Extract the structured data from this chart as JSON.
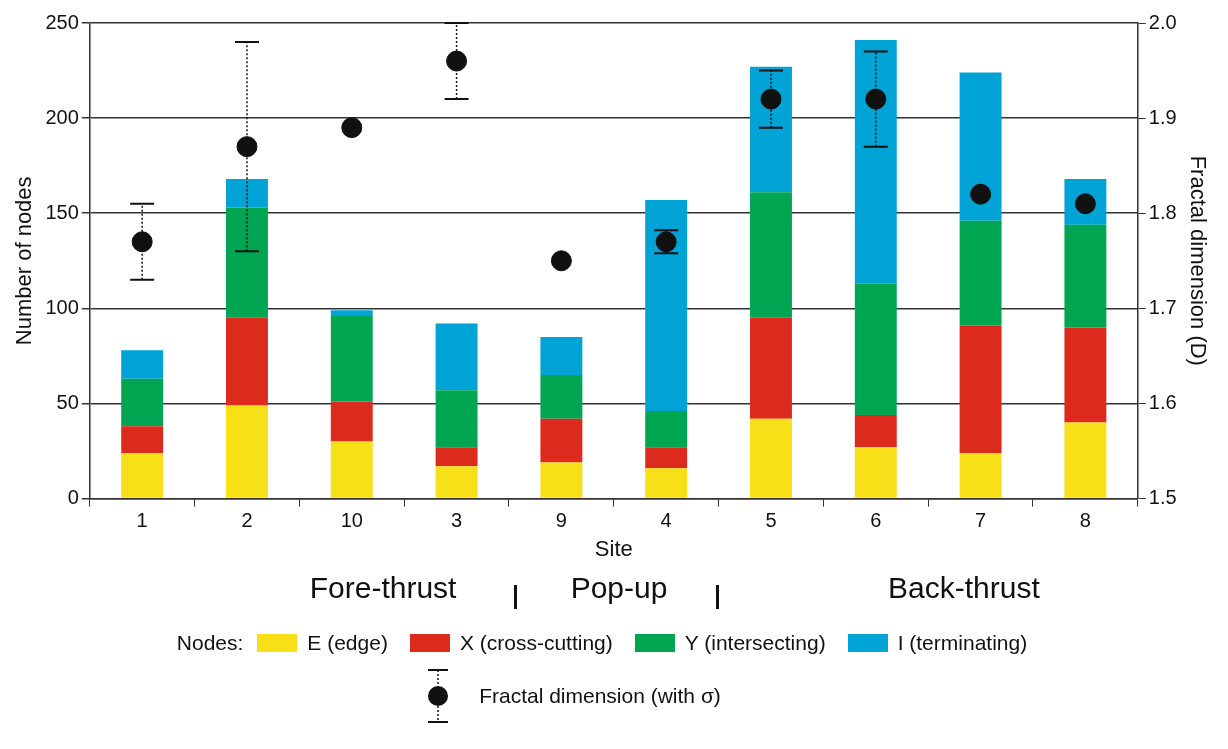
{
  "chart_data": {
    "type": "bar",
    "stacked": true,
    "xlabel": "Site",
    "ylabel": "Number of nodes",
    "y2label": "Fractal dimension (D)",
    "categories": [
      "1",
      "2",
      "10",
      "3",
      "9",
      "4",
      "5",
      "6",
      "7",
      "8"
    ],
    "series": [
      {
        "name": "E (edge)",
        "color": "#f7e017",
        "values": [
          24,
          49,
          30,
          17,
          19,
          16,
          42,
          27,
          24,
          40
        ]
      },
      {
        "name": "X (cross-cutting)",
        "color": "#dc2a1c",
        "values": [
          14,
          46,
          21,
          10,
          23,
          11,
          53,
          17,
          67,
          50
        ]
      },
      {
        "name": "Y (intersecting)",
        "color": "#00a552",
        "values": [
          25,
          58,
          45,
          30,
          23,
          19,
          66,
          69,
          55,
          54
        ]
      },
      {
        "name": "I (terminating)",
        "color": "#00a3d6",
        "values": [
          15,
          15,
          3,
          35,
          20,
          111,
          66,
          128,
          78,
          24
        ]
      },
      {
        "name": "Fractal dimension (with σ)",
        "type": "scatter",
        "axis": "y2",
        "marker": "circle",
        "color": "#111111",
        "values": [
          1.77,
          1.87,
          1.89,
          1.96,
          1.75,
          1.77,
          1.92,
          1.92,
          1.82,
          1.81
        ],
        "errors": [
          0.04,
          0.11,
          null,
          0.04,
          null,
          0.012,
          0.03,
          0.05,
          null,
          null
        ]
      }
    ],
    "ylim": [
      0,
      250
    ],
    "yticks": [
      0,
      50,
      100,
      150,
      200,
      250
    ],
    "y2lim": [
      1.5,
      2.0
    ],
    "y2ticks": [
      1.5,
      1.6,
      1.7,
      1.8,
      1.9,
      {
        "value": 2.0,
        "label": "2.0"
      }
    ],
    "grid": "y",
    "legend": "bottom",
    "legend_title": "Nodes:",
    "annotations": [
      "Fore-thrust",
      "Pop-up",
      "Back-thrust"
    ]
  }
}
